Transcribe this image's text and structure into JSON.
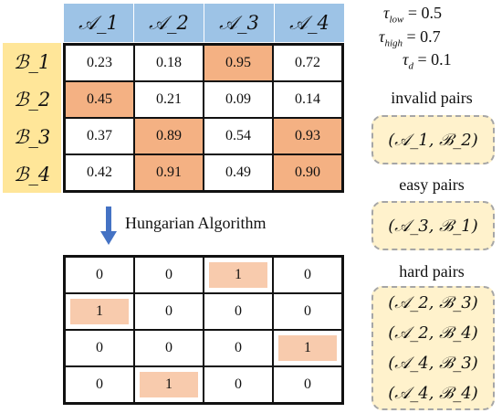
{
  "score_matrix": {
    "columns": [
      "𝒜_1",
      "𝒜_2",
      "𝒜_3",
      "𝒜_4"
    ],
    "rows": [
      "ℬ_1",
      "ℬ_2",
      "ℬ_3",
      "ℬ_4"
    ],
    "values": [
      [
        "0.23",
        "0.18",
        "0.95",
        "0.72"
      ],
      [
        "0.45",
        "0.21",
        "0.09",
        "0.14"
      ],
      [
        "0.37",
        "0.89",
        "0.54",
        "0.93"
      ],
      [
        "0.42",
        "0.91",
        "0.49",
        "0.90"
      ]
    ],
    "highlighted": [
      [
        0,
        2
      ],
      [
        1,
        0
      ],
      [
        2,
        1
      ],
      [
        2,
        3
      ],
      [
        3,
        1
      ],
      [
        3,
        3
      ]
    ],
    "highlight_color": "#f4b183",
    "column_header_color": "#9dc3e6",
    "row_header_color": "#ffe699"
  },
  "algorithm": {
    "label": "Hungarian Algorithm",
    "arrow_color": "#4472c4"
  },
  "assignment_matrix": {
    "values": [
      [
        "0",
        "0",
        "1",
        "0"
      ],
      [
        "1",
        "0",
        "0",
        "0"
      ],
      [
        "0",
        "0",
        "0",
        "1"
      ],
      [
        "0",
        "1",
        "0",
        "0"
      ]
    ],
    "highlight_color": "#f8cbad"
  },
  "thresholds": {
    "tau_low": {
      "symbol": "τ",
      "subscript": "low",
      "value": "= 0.5"
    },
    "tau_high": {
      "symbol": "τ",
      "subscript": "high",
      "value": "= 0.7"
    },
    "tau_d": {
      "symbol": "τ",
      "subscript": "d",
      "value": "= 0.1"
    }
  },
  "invalid_pairs": {
    "title": "invalid pairs",
    "pairs": [
      "(𝒜_1, ℬ_2)"
    ]
  },
  "easy_pairs": {
    "title": "easy pairs",
    "pairs": [
      "(𝒜_3, ℬ_1)"
    ]
  },
  "hard_pairs": {
    "title": "hard pairs",
    "pairs": [
      "(𝒜_2, ℬ_3)",
      "(𝒜_2, ℬ_4)",
      "(𝒜_4, ℬ_3)",
      "(𝒜_4, ℬ_4)"
    ]
  },
  "pair_box_color": "#fff2cc"
}
